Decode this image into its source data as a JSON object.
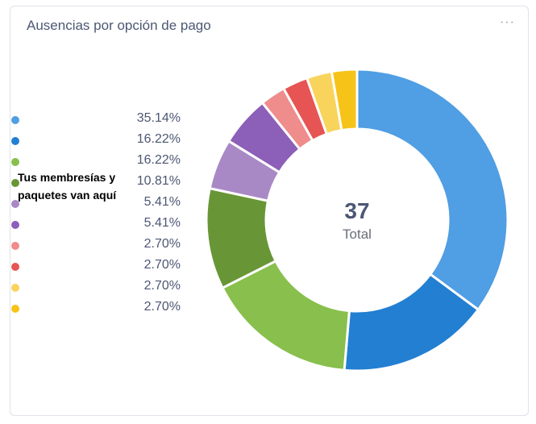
{
  "card": {
    "title": "Ausencias por opción de pago",
    "menu_label": "···"
  },
  "center": {
    "value": "37",
    "label": "Total"
  },
  "note": "Tus membresías y paquetes van aquí",
  "chart_data": {
    "type": "pie",
    "donut": true,
    "total": 37,
    "legend": [
      {
        "percent": "35.14%",
        "color": "#509ee3"
      },
      {
        "percent": "16.22%",
        "color": "#227fd2"
      },
      {
        "percent": "16.22%",
        "color": "#88bf4d"
      },
      {
        "percent": "10.81%",
        "color": "#689636"
      },
      {
        "percent": "5.41%",
        "color": "#a989c5"
      },
      {
        "percent": "5.41%",
        "color": "#8c5fb8"
      },
      {
        "percent": "2.70%",
        "color": "#ef8c8c"
      },
      {
        "percent": "2.70%",
        "color": "#e75454"
      },
      {
        "percent": "2.70%",
        "color": "#f9d45c"
      },
      {
        "percent": "2.70%",
        "color": "#f6c318"
      }
    ],
    "values": [
      13,
      6,
      6,
      4,
      2,
      2,
      1,
      1,
      1,
      1
    ]
  }
}
